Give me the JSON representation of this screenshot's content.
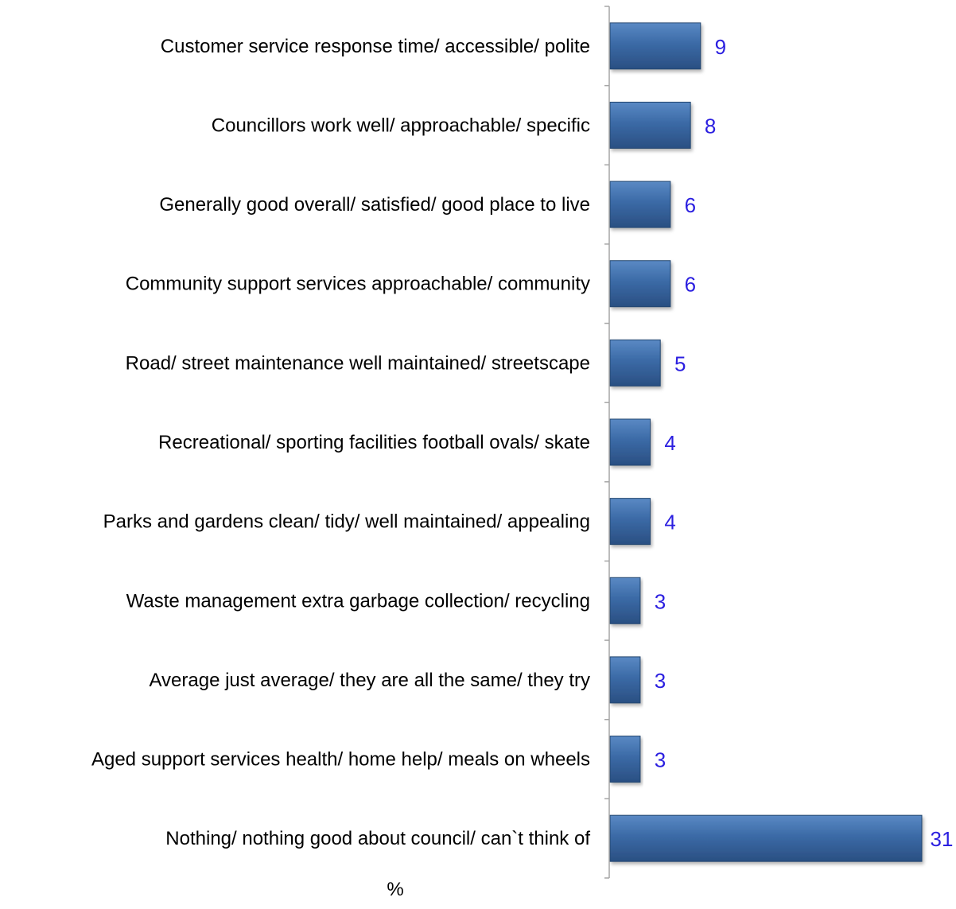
{
  "chart_data": {
    "type": "bar",
    "orientation": "horizontal",
    "categories": [
      "Customer service response time/ accessible/ polite",
      "Councillors work well/ approachable/ specific",
      "Generally good overall/ satisfied/ good place to live",
      "Community support services approachable/ community",
      "Road/ street maintenance well maintained/ streetscape",
      "Recreational/ sporting facilities football ovals/ skate",
      "Parks and gardens clean/ tidy/ well maintained/ appealing",
      "Waste management extra garbage collection/ recycling",
      "Average just average/ they are all the same/ they try",
      "Aged support services health/ home help/ meals on wheels",
      "Nothing/ nothing good about council/ can`t think of"
    ],
    "values": [
      9,
      8,
      6,
      6,
      5,
      4,
      4,
      3,
      3,
      3,
      31
    ],
    "data_labels": [
      "9",
      "8",
      "6",
      "6",
      "5",
      "4",
      "4",
      "3",
      "3",
      "3",
      "31"
    ],
    "xlabel": "%",
    "xlim": [
      0,
      31
    ],
    "grid": false,
    "legend": "none",
    "colors": {
      "bar": "#3B6AA6",
      "bar_light": "#5A89C4",
      "bar_dark": "#2A4F82",
      "bar_stroke": "#24466F",
      "data_label": "#2B1FE0",
      "category_label": "#000000",
      "axis": "#A6A6A6"
    }
  }
}
